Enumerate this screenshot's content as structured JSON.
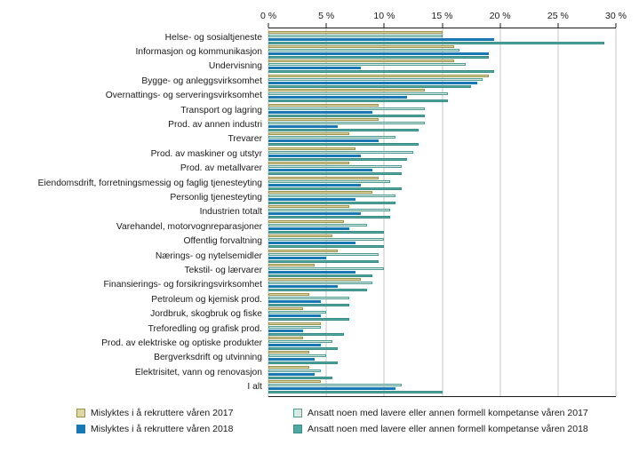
{
  "chart_data": {
    "type": "bar",
    "orientation": "horizontal",
    "title": "",
    "xlabel": "",
    "ylabel": "",
    "xlim": [
      0,
      30
    ],
    "x_ticks": [
      "0 %",
      "5 %",
      "10 %",
      "15 %",
      "20 %",
      "25 %",
      "30 %"
    ],
    "grid": true,
    "legend_position": "bottom",
    "categories": [
      "Helse- og sosialtjeneste",
      "Informasjon og kommunikasjon",
      "Undervisning",
      "Bygge- og anleggsvirksomhet",
      "Overnattings- og serveringsvirksomhet",
      "Transport og lagring",
      "Prod. av annen industri",
      "Trevarer",
      "Prod. av maskiner og utstyr",
      "Prod. av metallvarer",
      "Eiendomsdrift, forretningsmessig og faglig tjenesteyting",
      "Personlig tjenesteyting",
      "Industrien totalt",
      "Varehandel, motorvognreparasjoner",
      "Offentlig forvaltning",
      "Nærings- og nytelsemidler",
      "Tekstil- og lærvarer",
      "Finansierings- og forsikringsvirksomhet",
      "Petroleum og kjemisk prod.",
      "Jordbruk, skogbruk og fiske",
      "Treforedling og grafisk prod.",
      "Prod. av elektriske og optiske produkter",
      "Bergverksdrift og utvinning",
      "Elektrisitet, vann og renovasjon",
      "I alt"
    ],
    "series": [
      {
        "name": "Mislyktes i å rekruttere våren 2017",
        "color": "#ddd7a4",
        "border": "#9a914f",
        "values": [
          15,
          16,
          16,
          19,
          13.5,
          9.5,
          9.5,
          7,
          7.5,
          7,
          9.5,
          9,
          7,
          6.5,
          5.5,
          6,
          4,
          8,
          3.5,
          3,
          4.5,
          3,
          3.5,
          3.5,
          4.5
        ]
      },
      {
        "name": "Ansatt noen med lavere eller annen formell kompetanse våren 2017",
        "color": "#d9e9e1",
        "border": "#4f9c93",
        "values": [
          15,
          16.5,
          17,
          18.5,
          15.5,
          13.5,
          13.5,
          11,
          12.5,
          11.5,
          10.5,
          11,
          10.5,
          8.5,
          10,
          9.5,
          10,
          9,
          7,
          5,
          4.5,
          5.5,
          5,
          4.5,
          11.5
        ]
      },
      {
        "name": "Mislyktes i å rekruttere våren 2018",
        "color": "#1878b4",
        "border": "#1878b4",
        "values": [
          19.5,
          19,
          8,
          18,
          12,
          9,
          6,
          9.5,
          8,
          9,
          8,
          7.5,
          8,
          7,
          7.5,
          5,
          7.5,
          6,
          4.5,
          4.5,
          3,
          4.5,
          4,
          4,
          11
        ]
      },
      {
        "name": "Ansatt noen med lavere eller annen formell kompetanse våren 2018",
        "color": "#4fa8a1",
        "border": "#3a8b84",
        "values": [
          29,
          19,
          19.5,
          17.5,
          15.5,
          13.5,
          13,
          13,
          12,
          11.5,
          11.5,
          11,
          10.5,
          10,
          10,
          9.5,
          9,
          8.5,
          7,
          7,
          6.5,
          6,
          6,
          5.5,
          15
        ]
      }
    ],
    "legend_order": [
      0,
      1,
      2,
      3
    ]
  }
}
